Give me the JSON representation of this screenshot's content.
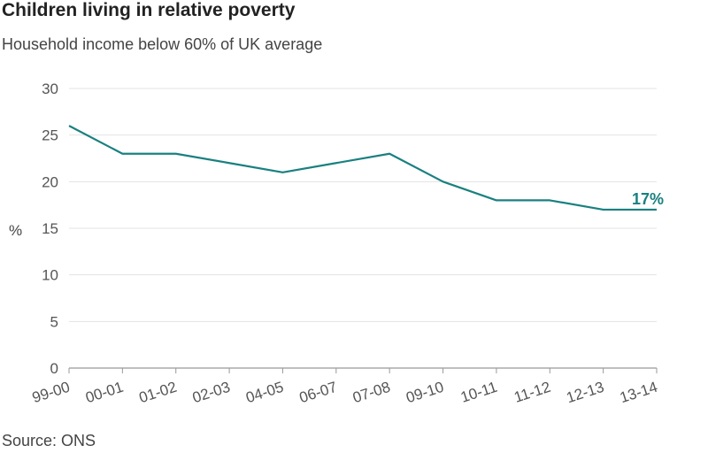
{
  "chart_data": {
    "type": "line",
    "title": "Children living in relative poverty",
    "subtitle": "Household income below 60% of UK average",
    "ylabel": "%",
    "xlabel": "",
    "ylim": [
      0,
      30
    ],
    "yticks": [
      "0",
      "5",
      "10",
      "15",
      "20",
      "25",
      "30"
    ],
    "categories": [
      "99-00",
      "00-01",
      "01-02",
      "02-03",
      "04-05",
      "06-07",
      "07-08",
      "09-10",
      "10-11",
      "11-12",
      "12-13",
      "13-14"
    ],
    "x_positions": [
      0,
      1,
      2,
      3,
      4,
      5,
      6,
      7,
      8,
      9,
      10,
      11
    ],
    "series": [
      {
        "values": [
          26,
          23,
          23,
          22,
          21,
          22,
          23,
          20,
          18,
          18,
          17,
          17
        ],
        "color": "#1a8080"
      }
    ],
    "end_label": "17%",
    "grid": true,
    "source": "Source: ONS"
  }
}
